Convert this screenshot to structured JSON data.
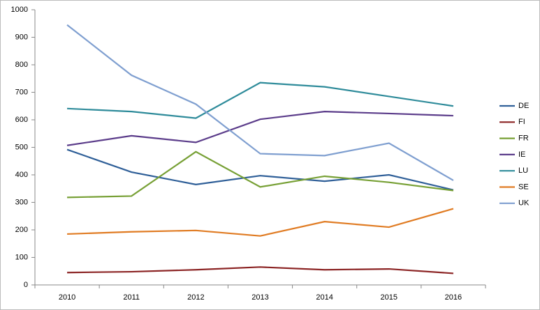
{
  "chart_data": {
    "type": "line",
    "categories": [
      "2010",
      "2011",
      "2012",
      "2013",
      "2014",
      "2015",
      "2016"
    ],
    "series": [
      {
        "name": "DE",
        "color": "#2f5f98",
        "values": [
          492,
          410,
          365,
          397,
          377,
          400,
          345
        ]
      },
      {
        "name": "FI",
        "color": "#8b2323",
        "values": [
          45,
          48,
          55,
          65,
          55,
          58,
          42
        ]
      },
      {
        "name": "FR",
        "color": "#77a035",
        "values": [
          318,
          323,
          484,
          356,
          395,
          373,
          343
        ]
      },
      {
        "name": "IE",
        "color": "#5b3c8a",
        "values": [
          507,
          542,
          518,
          602,
          630,
          623,
          615
        ]
      },
      {
        "name": "LU",
        "color": "#2e8b9a",
        "values": [
          641,
          630,
          606,
          735,
          720,
          685,
          650
        ]
      },
      {
        "name": "SE",
        "color": "#e07b22",
        "values": [
          185,
          193,
          198,
          178,
          230,
          210,
          277
        ]
      },
      {
        "name": "UK",
        "color": "#7f9fd0",
        "values": [
          945,
          762,
          657,
          477,
          470,
          515,
          380
        ]
      }
    ],
    "ylim": [
      0,
      1000
    ],
    "yticks": [
      0,
      100,
      200,
      300,
      400,
      500,
      600,
      700,
      800,
      900,
      1000
    ],
    "grid": false,
    "legend": "right"
  }
}
